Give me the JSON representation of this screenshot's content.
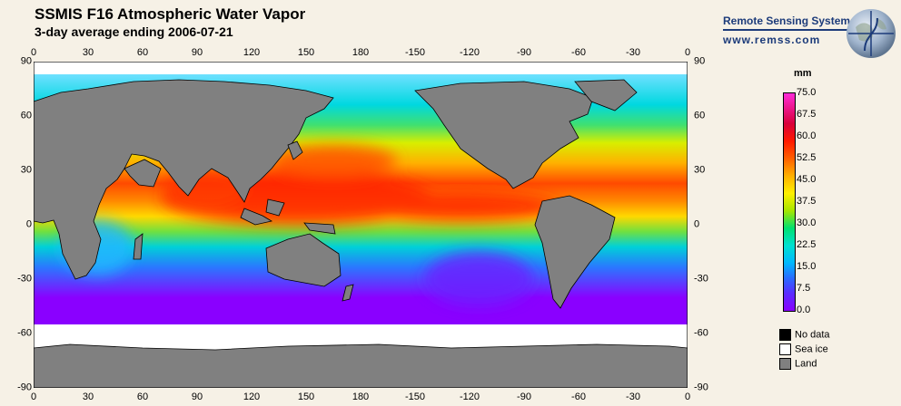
{
  "title": "SSMIS F16 Atmospheric Water Vapor",
  "subtitle": "3-day average ending 2006-07-21",
  "brand": {
    "name": "Remote Sensing Systems",
    "url": "www.remss.com",
    "logo_icon": "globe-sine-icon"
  },
  "lon_ticks": [
    "0",
    "30",
    "60",
    "90",
    "120",
    "150",
    "180",
    "-150",
    "-120",
    "-90",
    "-60",
    "-30",
    "0"
  ],
  "lat_ticks": [
    "90",
    "60",
    "30",
    "0",
    "-30",
    "-60",
    "-90"
  ],
  "colorbar": {
    "unit": "mm",
    "labels": [
      "75.0",
      "67.5",
      "60.0",
      "52.5",
      "45.0",
      "37.5",
      "30.0",
      "22.5",
      "15.0",
      "7.5",
      "0.0"
    ],
    "range": [
      0,
      75
    ],
    "colors": [
      "#8a00ff",
      "#2a6bff",
      "#00b8ff",
      "#00e070",
      "#fff000",
      "#ffb000",
      "#ff1a00",
      "#d8003a",
      "#ff2bd8"
    ]
  },
  "legend": [
    {
      "label": "No data",
      "color": "#000000"
    },
    {
      "label": "Sea ice",
      "color": "#ffffff"
    },
    {
      "label": "Land",
      "color": "#808080"
    }
  ],
  "colors": {
    "land": "#808080",
    "sea_ice": "#ffffff",
    "no_data": "#000000",
    "background": "#f6f1e6"
  }
}
